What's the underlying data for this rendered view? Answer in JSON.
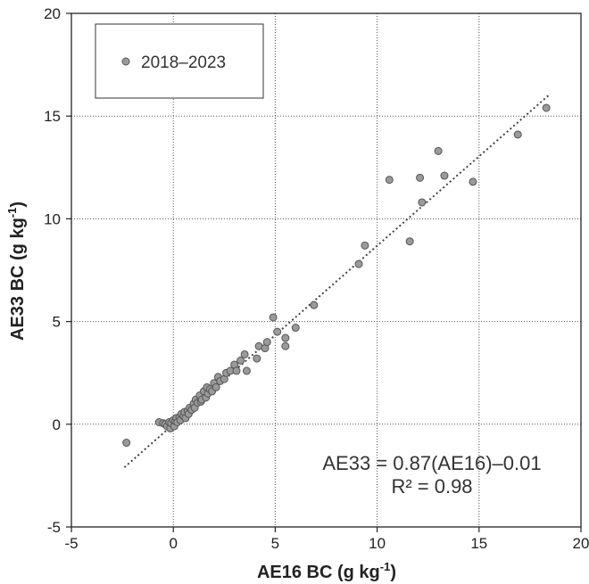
{
  "chart_data": {
    "type": "scatter",
    "xlabel": "AE16 BC (g kg",
    "xlabel_sup": "-1",
    "xlabel_end": ")",
    "ylabel": "AE33 BC (g kg",
    "ylabel_sup": "-1",
    "ylabel_end": ")",
    "xlim": [
      -5,
      20
    ],
    "ylim": [
      -5,
      20
    ],
    "xticks": [
      -5,
      0,
      5,
      10,
      15,
      20
    ],
    "yticks": [
      -5,
      0,
      5,
      10,
      15,
      20
    ],
    "grid": true,
    "legend_position": "top-left",
    "point_color": "#9a9a9a",
    "series": [
      {
        "name": "2018–2023",
        "points": [
          [
            -2.3,
            -0.9
          ],
          [
            -0.7,
            0.1
          ],
          [
            -0.5,
            0.05
          ],
          [
            -0.4,
            0.0
          ],
          [
            -0.3,
            -0.1
          ],
          [
            -0.2,
            0.1
          ],
          [
            -0.15,
            -0.2
          ],
          [
            -0.1,
            0.05
          ],
          [
            0.0,
            0.2
          ],
          [
            0.05,
            -0.1
          ],
          [
            0.1,
            0.15
          ],
          [
            0.15,
            0.3
          ],
          [
            0.2,
            0.1
          ],
          [
            0.3,
            0.35
          ],
          [
            0.35,
            0.2
          ],
          [
            0.4,
            0.5
          ],
          [
            0.5,
            0.4
          ],
          [
            0.55,
            0.6
          ],
          [
            0.6,
            0.3
          ],
          [
            0.7,
            0.65
          ],
          [
            0.75,
            0.5
          ],
          [
            0.8,
            0.8
          ],
          [
            0.9,
            0.7
          ],
          [
            1.0,
            1.0
          ],
          [
            1.05,
            0.8
          ],
          [
            1.1,
            1.2
          ],
          [
            1.2,
            1.05
          ],
          [
            1.3,
            1.4
          ],
          [
            1.35,
            1.1
          ],
          [
            1.4,
            1.2
          ],
          [
            1.5,
            1.6
          ],
          [
            1.6,
            1.3
          ],
          [
            1.65,
            1.8
          ],
          [
            1.7,
            1.5
          ],
          [
            1.8,
            1.7
          ],
          [
            1.9,
            1.6
          ],
          [
            2.0,
            2.0
          ],
          [
            2.1,
            1.8
          ],
          [
            2.2,
            2.3
          ],
          [
            2.3,
            2.1
          ],
          [
            2.5,
            2.2
          ],
          [
            2.6,
            2.5
          ],
          [
            2.8,
            2.6
          ],
          [
            3.0,
            2.9
          ],
          [
            3.1,
            2.6
          ],
          [
            3.3,
            3.1
          ],
          [
            3.5,
            3.4
          ],
          [
            3.6,
            2.6
          ],
          [
            4.1,
            3.2
          ],
          [
            4.2,
            3.8
          ],
          [
            4.5,
            3.7
          ],
          [
            4.6,
            4.0
          ],
          [
            4.9,
            5.2
          ],
          [
            5.1,
            4.5
          ],
          [
            5.5,
            4.2
          ],
          [
            5.5,
            3.8
          ],
          [
            6.0,
            4.7
          ],
          [
            6.9,
            5.8
          ],
          [
            9.1,
            7.8
          ],
          [
            9.4,
            8.7
          ],
          [
            10.6,
            11.9
          ],
          [
            11.6,
            8.9
          ],
          [
            12.1,
            12.0
          ],
          [
            12.2,
            10.8
          ],
          [
            13.0,
            13.3
          ],
          [
            13.3,
            12.1
          ],
          [
            14.7,
            11.8
          ],
          [
            16.9,
            14.1
          ],
          [
            18.3,
            15.4
          ]
        ]
      }
    ],
    "fit_line": {
      "slope": 0.87,
      "intercept": -0.01,
      "x_range": [
        -2.4,
        18.4
      ]
    },
    "annotation": {
      "line1": "AE33 = 0.87(AE16)–0.01",
      "line2": "R² = 0.98"
    }
  }
}
